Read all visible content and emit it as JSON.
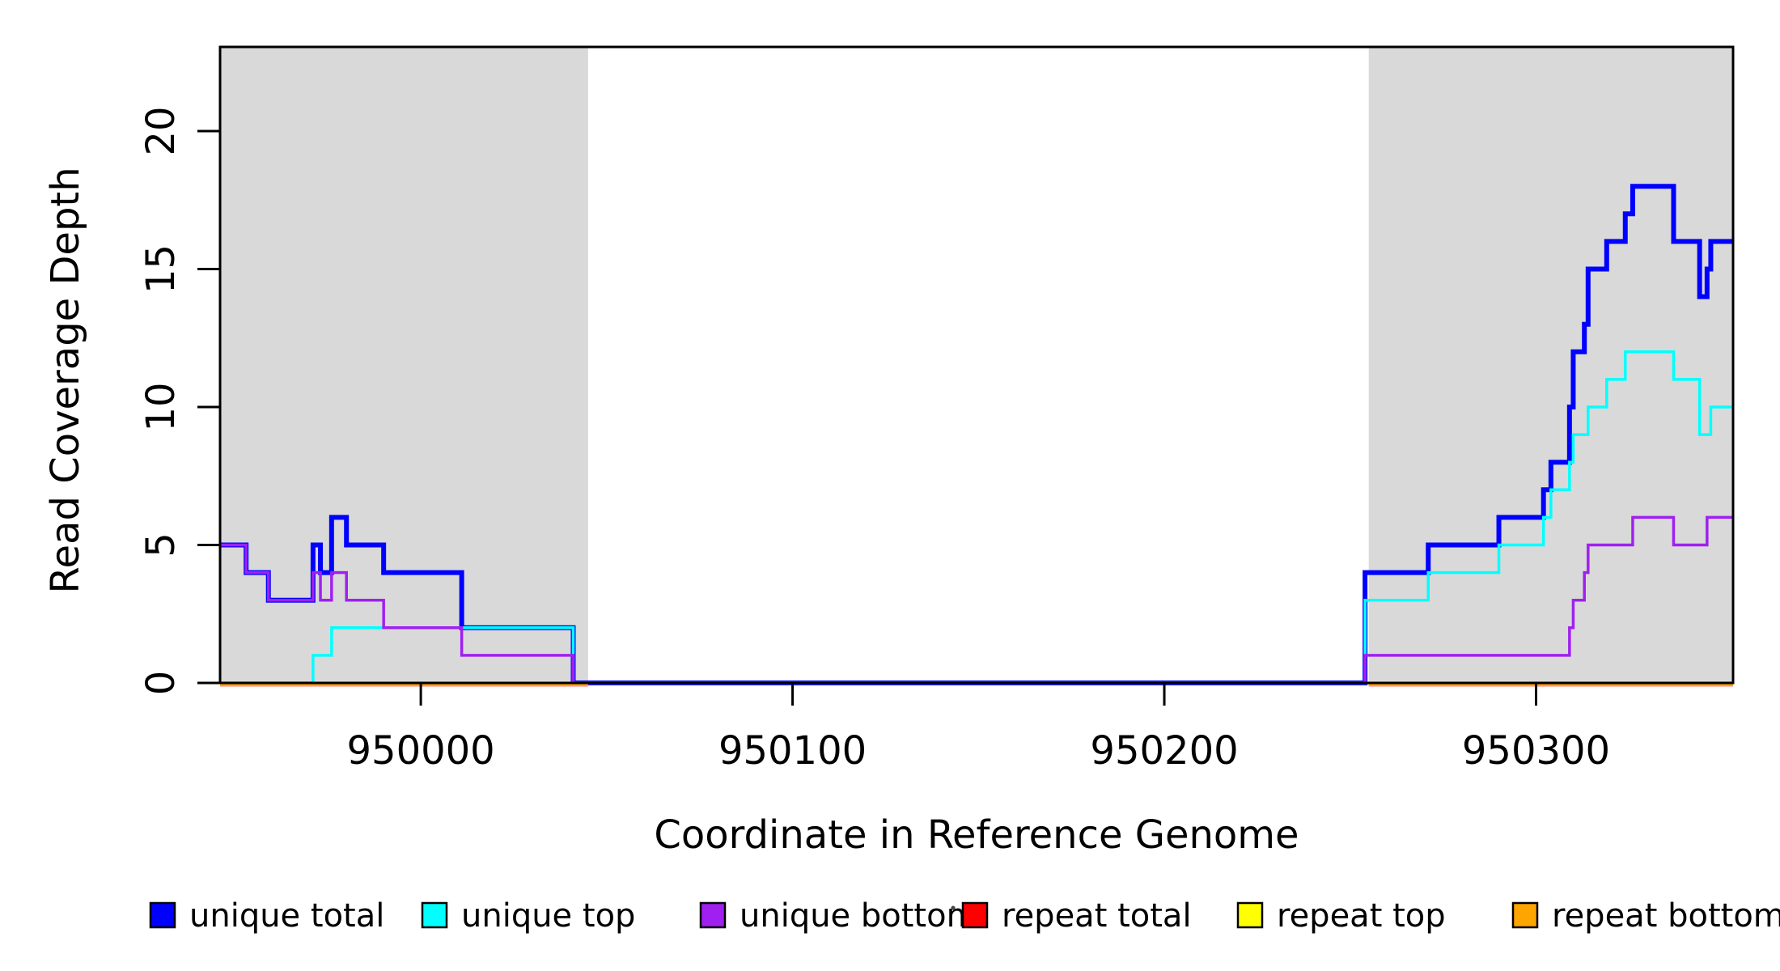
{
  "chart_data": {
    "type": "line",
    "subtype": "step",
    "title": "",
    "xlabel": "Coordinate in Reference Genome",
    "ylabel": "Read Coverage Depth",
    "xlim": [
      949946,
      950353
    ],
    "ylim": [
      0,
      23.05
    ],
    "x_ticks": [
      950000,
      950100,
      950200,
      950300
    ],
    "y_ticks": [
      0,
      5,
      10,
      15,
      20
    ],
    "grid": false,
    "legend_position": "bottom",
    "background_color": "#ffffff",
    "shaded_regions": [
      {
        "name": "left-repeat-region",
        "x0": 949946,
        "x1": 950045,
        "color": "#D9D9D9"
      },
      {
        "name": "right-repeat-region",
        "x0": 950255,
        "x1": 950353,
        "color": "#D9D9D9"
      }
    ],
    "series": [
      {
        "name": "unique total",
        "color": "#0000FF",
        "points": [
          [
            949946,
            5
          ],
          [
            949953,
            4
          ],
          [
            949959,
            3
          ],
          [
            949971,
            5
          ],
          [
            949973,
            4
          ],
          [
            949976,
            6
          ],
          [
            949980,
            5
          ],
          [
            949990,
            4
          ],
          [
            950011,
            2
          ],
          [
            950041,
            0
          ],
          [
            950254,
            4
          ],
          [
            950271,
            5
          ],
          [
            950290,
            6
          ],
          [
            950302,
            7
          ],
          [
            950304,
            8
          ],
          [
            950309,
            10
          ],
          [
            950310,
            12
          ],
          [
            950313,
            13
          ],
          [
            950314,
            15
          ],
          [
            950319,
            16
          ],
          [
            950324,
            17
          ],
          [
            950326,
            18
          ],
          [
            950337,
            16
          ],
          [
            950344,
            14
          ],
          [
            950346,
            15
          ],
          [
            950347,
            16
          ]
        ]
      },
      {
        "name": "unique top",
        "color": "#00FFFF",
        "points": [
          [
            949946,
            0
          ],
          [
            949971,
            1
          ],
          [
            949976,
            2
          ],
          [
            950041,
            0
          ],
          [
            950254,
            3
          ],
          [
            950271,
            4
          ],
          [
            950290,
            5
          ],
          [
            950302,
            6
          ],
          [
            950304,
            7
          ],
          [
            950309,
            8
          ],
          [
            950310,
            9
          ],
          [
            950314,
            10
          ],
          [
            950319,
            11
          ],
          [
            950324,
            12
          ],
          [
            950337,
            11
          ],
          [
            950344,
            9
          ],
          [
            950347,
            10
          ]
        ]
      },
      {
        "name": "unique bottom",
        "color": "#A020F0",
        "points": [
          [
            949946,
            5
          ],
          [
            949953,
            4
          ],
          [
            949959,
            3
          ],
          [
            949971,
            4
          ],
          [
            949973,
            3
          ],
          [
            949976,
            4
          ],
          [
            949980,
            3
          ],
          [
            949990,
            2
          ],
          [
            950011,
            1
          ],
          [
            950041,
            0
          ],
          [
            950254,
            1
          ],
          [
            950309,
            2
          ],
          [
            950310,
            3
          ],
          [
            950313,
            4
          ],
          [
            950314,
            5
          ],
          [
            950326,
            6
          ],
          [
            950337,
            5
          ],
          [
            950346,
            6
          ]
        ]
      },
      {
        "name": "repeat total",
        "color": "#FF0000",
        "value": 0,
        "segments": [
          [
            949946,
            950045
          ],
          [
            950255,
            950353
          ]
        ]
      },
      {
        "name": "repeat top",
        "color": "#FFFF00",
        "value": 0,
        "segments": [
          [
            949946,
            950045
          ],
          [
            950255,
            950353
          ]
        ]
      },
      {
        "name": "repeat bottom",
        "color": "#FFA500",
        "value": 0,
        "segments": [
          [
            949946,
            950045
          ],
          [
            950255,
            950353
          ]
        ]
      }
    ]
  },
  "legend": {
    "items": [
      {
        "label": "unique total",
        "color": "#0000FF"
      },
      {
        "label": "unique top",
        "color": "#00FFFF"
      },
      {
        "label": "unique bottom",
        "color": "#A020F0"
      },
      {
        "label": "repeat total",
        "color": "#FF0000"
      },
      {
        "label": "repeat top",
        "color": "#FFFF00"
      },
      {
        "label": "repeat bottom",
        "color": "#FFA500"
      }
    ]
  }
}
